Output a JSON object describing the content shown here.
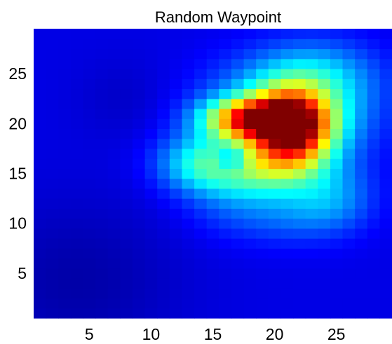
{
  "chart_data": {
    "type": "heatmap",
    "title": "Random Waypoint",
    "xlabel": "",
    "ylabel": "",
    "xlim": [
      0.5,
      29.5
    ],
    "ylim": [
      0.5,
      29.5
    ],
    "x_ticks": [
      5,
      10,
      15,
      20,
      25
    ],
    "y_ticks": [
      5,
      10,
      15,
      20,
      25
    ],
    "x_tick_labels": [
      "5",
      "10",
      "15",
      "20",
      "25"
    ],
    "y_tick_labels": [
      "5",
      "10",
      "15",
      "20",
      "25"
    ],
    "grid": false,
    "colormap": "jet",
    "value_range": [
      0,
      1
    ],
    "grid_size": [
      29,
      29
    ],
    "value_model": {
      "note": "intensity z(x,y) = clamp(base + sum of gaussian blobs, 0, 1)",
      "base": 0.1,
      "blobs": [
        {
          "x": 21.5,
          "y": 19.5,
          "sx": 2.2,
          "sy": 2.6,
          "amp": 0.7
        },
        {
          "x": 18.0,
          "y": 20.5,
          "sx": 2.6,
          "sy": 1.4,
          "amp": 0.55
        },
        {
          "x": 21.0,
          "y": 21.0,
          "sx": 4.5,
          "sy": 3.5,
          "amp": 0.3
        },
        {
          "x": 23.5,
          "y": 25.0,
          "sx": 3.5,
          "sy": 2.5,
          "amp": 0.15
        },
        {
          "x": 14.0,
          "y": 16.0,
          "sx": 2.5,
          "sy": 2.0,
          "amp": 0.25
        },
        {
          "x": 19.0,
          "y": 15.5,
          "sx": 3.0,
          "sy": 2.0,
          "amp": 0.25
        },
        {
          "x": 24.5,
          "y": 12.5,
          "sx": 2.5,
          "sy": 2.5,
          "amp": 0.17
        },
        {
          "x": 17.0,
          "y": 12.0,
          "sx": 3.0,
          "sy": 2.5,
          "amp": 0.1
        },
        {
          "x": 21.0,
          "y": 10.5,
          "sx": 2.5,
          "sy": 2.0,
          "amp": 0.06
        },
        {
          "x": 8.0,
          "y": 22.5,
          "sx": 3.0,
          "sy": 3.0,
          "amp": -0.03
        },
        {
          "x": 16.5,
          "y": 16.5,
          "sx": 0.9,
          "sy": 0.9,
          "amp": -0.18
        },
        {
          "x": 4.0,
          "y": 4.0,
          "sx": 6.0,
          "sy": 6.0,
          "amp": -0.06
        }
      ]
    }
  }
}
